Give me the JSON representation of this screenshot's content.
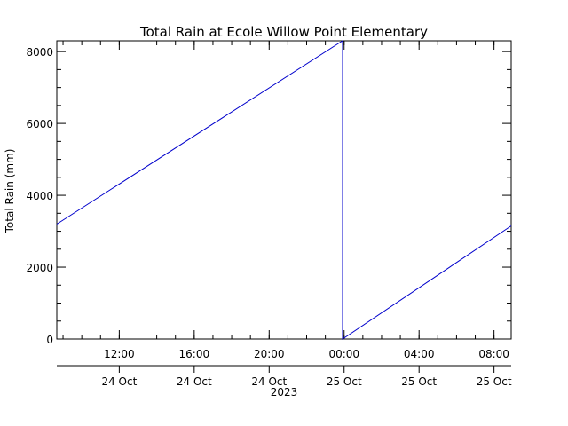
{
  "chart_data": {
    "type": "line",
    "title": "Total Rain at Ecole Willow Point Elementary",
    "ylabel": "Total Rain (mm)",
    "xlabel": "",
    "xlim": [
      "2023-10-24T08:40",
      "2023-10-25T08:55"
    ],
    "ylim": [
      0,
      8300
    ],
    "yticks": [
      0,
      2000,
      4000,
      6000,
      8000
    ],
    "xticks": [
      {
        "at": "2023-10-24T12:00",
        "time": "12:00",
        "date": "24 Oct"
      },
      {
        "at": "2023-10-24T16:00",
        "time": "16:00",
        "date": "24 Oct"
      },
      {
        "at": "2023-10-24T20:00",
        "time": "20:00",
        "date": "24 Oct"
      },
      {
        "at": "2023-10-25T00:00",
        "time": "00:00",
        "date": "25 Oct"
      },
      {
        "at": "2023-10-25T04:00",
        "time": "04:00",
        "date": "25 Oct"
      },
      {
        "at": "2023-10-25T08:00",
        "time": "08:00",
        "date": "25 Oct"
      }
    ],
    "year_label": "2023",
    "series": [
      {
        "color": "#0000cc",
        "points": [
          {
            "x": "2023-10-24T08:40",
            "y": 3200
          },
          {
            "x": "2023-10-24T23:55",
            "y": 8300
          },
          {
            "x": "2023-10-24T23:55",
            "y": 0
          },
          {
            "x": "2023-10-25T08:55",
            "y": 3150
          }
        ]
      }
    ],
    "grid": false,
    "legend": "none"
  }
}
